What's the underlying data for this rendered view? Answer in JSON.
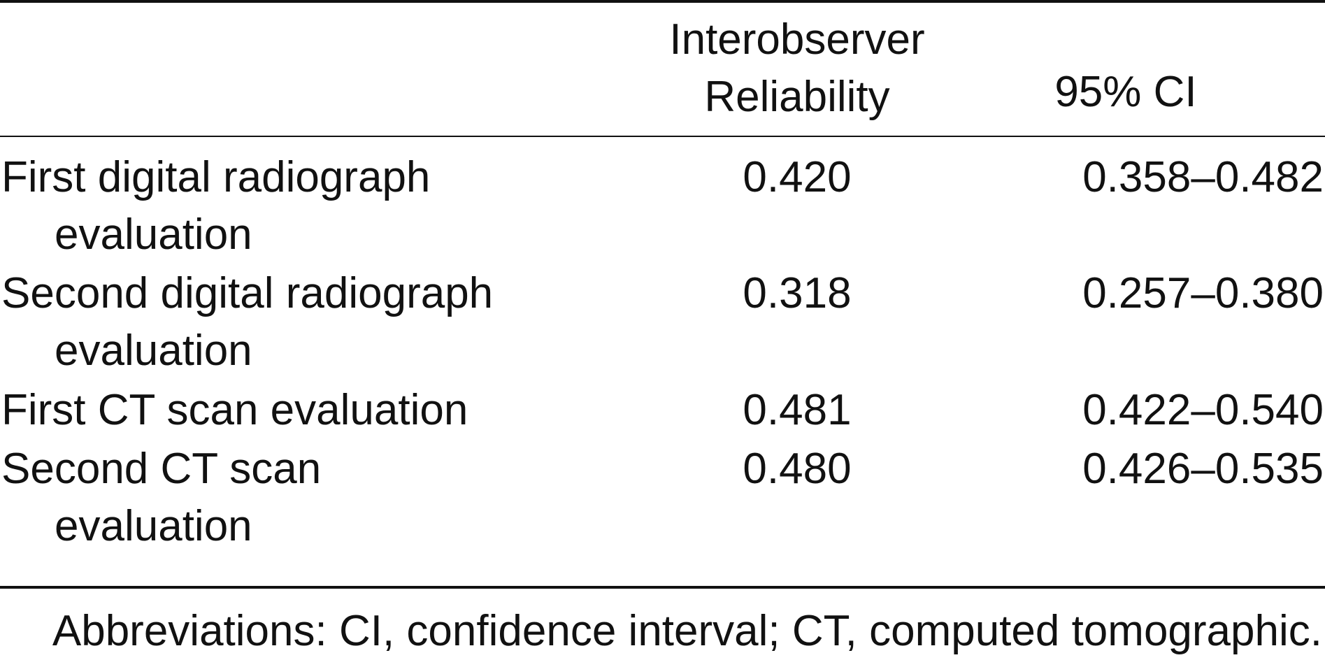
{
  "table": {
    "header": {
      "reliability_line1": "Interobserver",
      "reliability_line2": "Reliability",
      "ci": "95% CI"
    },
    "rows": [
      {
        "label_line1": "First digital radiograph",
        "label_line2": "evaluation",
        "reliability": "0.420",
        "ci": "0.358–0.482"
      },
      {
        "label_line1": "Second digital radiograph",
        "label_line2": "evaluation",
        "reliability": "0.318",
        "ci": "0.257–0.380"
      },
      {
        "label_line1": "First CT scan evaluation",
        "label_line2": "",
        "reliability": "0.481",
        "ci": "0.422–0.540"
      },
      {
        "label_line1": "Second CT scan",
        "label_line2": "evaluation",
        "reliability": "0.480",
        "ci": "0.426–0.535"
      }
    ],
    "footnote": "Abbreviations: CI, confidence interval; CT, computed tomographic."
  }
}
